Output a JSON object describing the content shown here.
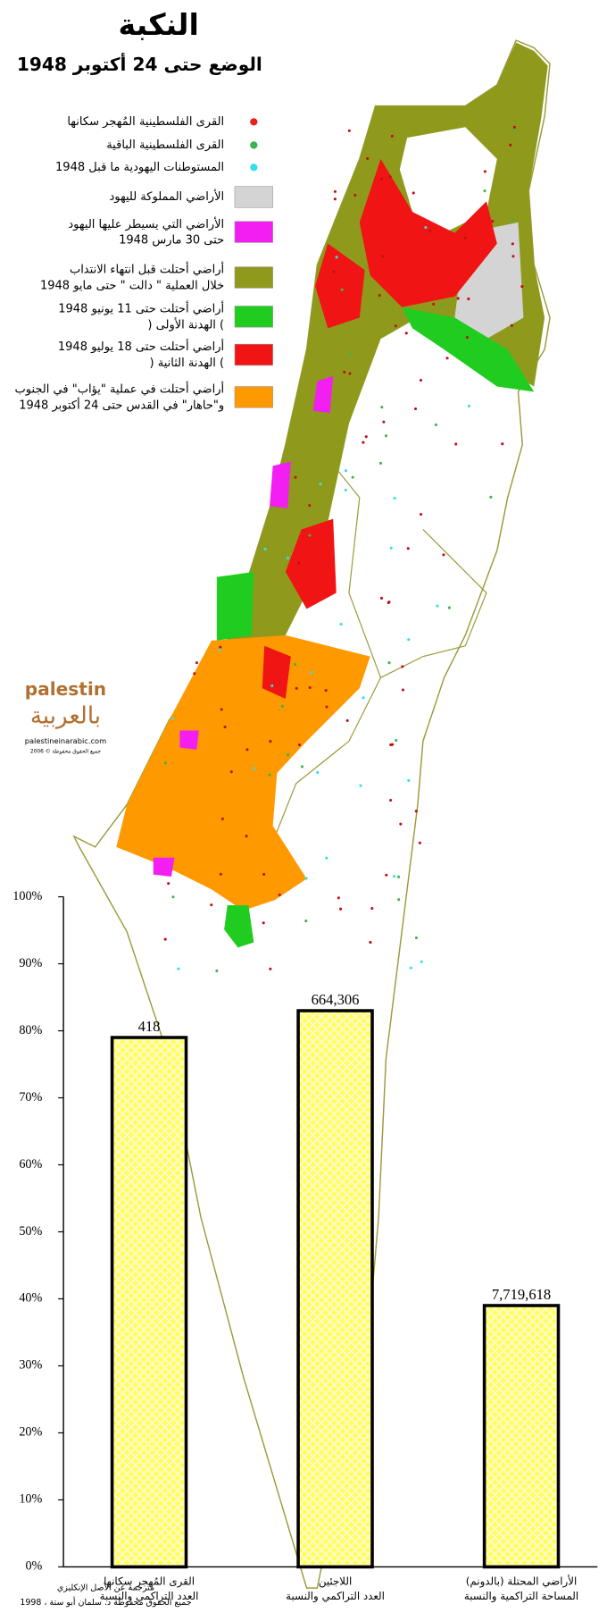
{
  "map": {
    "title": "النكبة",
    "subtitle": "الوضع حتى 24 أكتوبر 1948",
    "legend": [
      {
        "shape": "dot",
        "color": "#e8201c",
        "lines": [
          "القرى الفلسطينية المُهجر سكانها"
        ]
      },
      {
        "shape": "dot",
        "color": "#3cb44b",
        "lines": [
          "القرى الفلسطينية الباقية"
        ]
      },
      {
        "shape": "dot",
        "color": "#33e0e8",
        "lines": [
          "المستوطنات اليهودية ما قبل 1948"
        ]
      },
      {
        "shape": "box",
        "color": "#d4d4d4",
        "lines": [
          "الأراضي المملوكة لليهود"
        ]
      },
      {
        "shape": "box",
        "color": "#f21ef2",
        "lines": [
          "الأراضي التي يسيطر عليها اليهود",
          "حتى 30 مارس 1948"
        ]
      },
      {
        "shape": "box",
        "color": "#8f9a1c",
        "lines": [
          "أراضي أحتلت قبل انتهاء الانتداب",
          "خلال العملية \" دالت \" حتى مايو 1948"
        ]
      },
      {
        "shape": "box",
        "color": "#1fcc1f",
        "lines": [
          "أراضي أحتلت حتى 11 يونيو 1948",
          ") الهدنة الأولى ("
        ]
      },
      {
        "shape": "box",
        "color": "#f01414",
        "lines": [
          "أراضي أحتلت حتى 18 يوليو 1948",
          ") الهدنة الثانية ("
        ]
      },
      {
        "shape": "box",
        "color": "#ff9900",
        "lines": [
          "أراضي أحتلت في عملية \"يؤاب\" في الجنوب",
          "و\"حاهار\" في القدس حتى 24 أكتوبر 1948"
        ]
      }
    ],
    "logo": {
      "top": "palestin",
      "arabic": "بالعربية",
      "url": "palestineinarabic.com",
      "rights": "جميع الحقوق محفوظة © 2006"
    },
    "footer": [
      "مترجمة عن الأصل الإنكليزي",
      "جميع الحقوق محفوظة د. سلمان أبو ستة ، 1998"
    ]
  },
  "chart_data": {
    "type": "bar",
    "categories": [
      "القرى المُهجر سكانها",
      "اللاجئين",
      "الأراضي المحتلة (بالدونم)"
    ],
    "category_notes": [
      "العدد التراكمي والنسبة",
      "العدد التراكمي والنسبة",
      "المساحة التراكمية والنسبة"
    ],
    "values": [
      79,
      83,
      39
    ],
    "bar_labels": [
      "418",
      "664,306",
      "7,719,618"
    ],
    "color": "#ffff55",
    "edge_color": "#000000",
    "ylim": [
      0,
      100
    ],
    "yticks": [
      {
        "value": 0,
        "label": "0%"
      },
      {
        "value": 10,
        "label": "10%"
      },
      {
        "value": 20,
        "label": "20%"
      },
      {
        "value": 30,
        "label": "30%"
      },
      {
        "value": 40,
        "label": "40%"
      },
      {
        "value": 50,
        "label": "50%"
      },
      {
        "value": 60,
        "label": "60%"
      },
      {
        "value": 70,
        "label": "70%"
      },
      {
        "value": 80,
        "label": "80%"
      },
      {
        "value": 90,
        "label": "90%"
      },
      {
        "value": 100,
        "label": "100%"
      }
    ]
  }
}
